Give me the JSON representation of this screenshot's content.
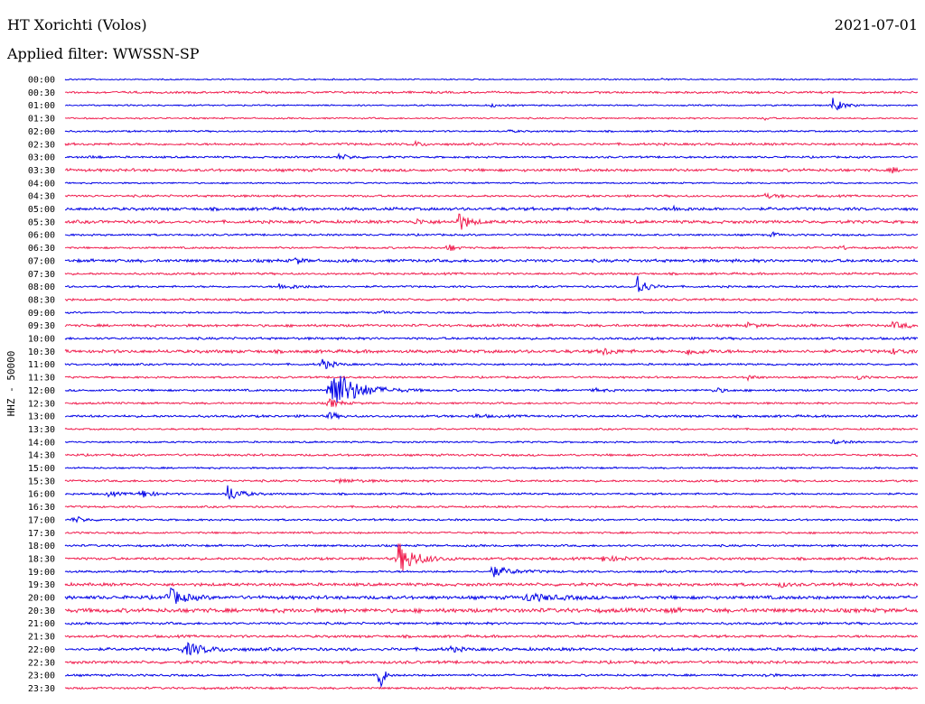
{
  "header": {
    "station": "HT Xorichti (Volos)",
    "date": "2021-07-01",
    "filter": "Applied filter: WWSSN-SP"
  },
  "chart_data": {
    "type": "line",
    "ylabel": "HHZ - 50000",
    "colors": {
      "even": "#0000e6",
      "odd": "#f01e4f"
    },
    "rows": [
      {
        "label": "00:00",
        "noise": 0.6,
        "events": [
          [
            0.7,
            1.0,
            6
          ]
        ]
      },
      {
        "label": "00:30",
        "noise": 1.0,
        "events": []
      },
      {
        "label": "01:00",
        "noise": 0.7,
        "events": [
          [
            0.5,
            1.5,
            12
          ],
          [
            0.9,
            8.0,
            10
          ]
        ]
      },
      {
        "label": "01:30",
        "noise": 0.7,
        "events": [
          [
            0.82,
            2.5,
            4
          ]
        ]
      },
      {
        "label": "02:00",
        "noise": 0.8,
        "events": [
          [
            0.52,
            1.0,
            10
          ]
        ]
      },
      {
        "label": "02:30",
        "noise": 1.1,
        "events": [
          [
            0.41,
            3.0,
            8
          ]
        ]
      },
      {
        "label": "03:00",
        "noise": 0.9,
        "events": [
          [
            0.03,
            2.0,
            8
          ],
          [
            0.32,
            3.0,
            14
          ]
        ]
      },
      {
        "label": "03:30",
        "noise": 1.3,
        "events": [
          [
            0.97,
            3.0,
            4
          ]
        ]
      },
      {
        "label": "04:00",
        "noise": 0.7,
        "events": []
      },
      {
        "label": "04:30",
        "noise": 1.0,
        "events": [
          [
            0.82,
            2.0,
            16
          ]
        ]
      },
      {
        "label": "05:00",
        "noise": 1.4,
        "events": [
          [
            0.71,
            2.5,
            12
          ]
        ]
      },
      {
        "label": "05:30",
        "noise": 1.4,
        "events": [
          [
            0.46,
            12.0,
            10
          ],
          [
            0.41,
            3.0,
            12
          ]
        ]
      },
      {
        "label": "06:00",
        "noise": 0.9,
        "events": [
          [
            0.83,
            3.5,
            4
          ]
        ]
      },
      {
        "label": "06:30",
        "noise": 0.9,
        "events": [
          [
            0.45,
            5.0,
            6
          ],
          [
            0.91,
            4.0,
            4
          ]
        ]
      },
      {
        "label": "07:00",
        "noise": 1.4,
        "events": [
          [
            0.27,
            4.0,
            6
          ]
        ]
      },
      {
        "label": "07:30",
        "noise": 1.0,
        "events": []
      },
      {
        "label": "08:00",
        "noise": 0.9,
        "events": [
          [
            0.67,
            16.0,
            8
          ],
          [
            0.25,
            3.0,
            20
          ]
        ]
      },
      {
        "label": "08:30",
        "noise": 1.0,
        "events": []
      },
      {
        "label": "09:00",
        "noise": 0.8,
        "events": [
          [
            0.37,
            1.5,
            10
          ]
        ]
      },
      {
        "label": "09:30",
        "noise": 1.2,
        "events": [
          [
            0.8,
            2.5,
            10
          ],
          [
            0.97,
            3.0,
            20
          ]
        ]
      },
      {
        "label": "10:00",
        "noise": 1.1,
        "events": []
      },
      {
        "label": "10:30",
        "noise": 1.5,
        "events": [
          [
            0.63,
            4.0,
            10
          ],
          [
            0.73,
            4.0,
            14
          ],
          [
            0.97,
            3.0,
            10
          ]
        ]
      },
      {
        "label": "11:00",
        "noise": 0.9,
        "events": [
          [
            0.3,
            7.0,
            10
          ],
          [
            0.05,
            2.0,
            4
          ]
        ]
      },
      {
        "label": "11:30",
        "noise": 0.9,
        "events": [
          [
            0.8,
            4.0,
            6
          ],
          [
            0.93,
            3.0,
            6
          ]
        ]
      },
      {
        "label": "12:00",
        "noise": 1.0,
        "events": [
          [
            0.31,
            28.0,
            24
          ],
          [
            0.76,
            4.0,
            8
          ],
          [
            0.62,
            2.0,
            10
          ]
        ]
      },
      {
        "label": "12:30",
        "noise": 0.9,
        "events": [
          [
            0.31,
            5.0,
            10
          ]
        ]
      },
      {
        "label": "13:00",
        "noise": 1.1,
        "events": [
          [
            0.31,
            6.0,
            6
          ],
          [
            0.48,
            2.0,
            10
          ]
        ]
      },
      {
        "label": "13:30",
        "noise": 0.8,
        "events": []
      },
      {
        "label": "14:00",
        "noise": 0.8,
        "events": [
          [
            0.9,
            2.0,
            14
          ]
        ]
      },
      {
        "label": "14:30",
        "noise": 1.0,
        "events": []
      },
      {
        "label": "15:00",
        "noise": 0.8,
        "events": []
      },
      {
        "label": "15:30",
        "noise": 1.0,
        "events": [
          [
            0.32,
            2.0,
            20
          ]
        ]
      },
      {
        "label": "16:00",
        "noise": 0.9,
        "events": [
          [
            0.05,
            3.0,
            10
          ],
          [
            0.09,
            5.0,
            10
          ],
          [
            0.19,
            10.0,
            12
          ]
        ]
      },
      {
        "label": "16:30",
        "noise": 0.9,
        "events": []
      },
      {
        "label": "17:00",
        "noise": 0.9,
        "events": [
          [
            0.01,
            4.0,
            10
          ]
        ]
      },
      {
        "label": "17:30",
        "noise": 0.9,
        "events": []
      },
      {
        "label": "18:00",
        "noise": 1.0,
        "events": []
      },
      {
        "label": "18:30",
        "noise": 1.2,
        "events": [
          [
            0.39,
            18.0,
            18
          ],
          [
            0.63,
            3.0,
            20
          ]
        ]
      },
      {
        "label": "19:00",
        "noise": 1.0,
        "events": [
          [
            0.5,
            6.0,
            20
          ]
        ]
      },
      {
        "label": "19:30",
        "noise": 1.4,
        "events": [
          [
            0.84,
            2.5,
            6
          ]
        ]
      },
      {
        "label": "20:00",
        "noise": 1.6,
        "events": [
          [
            0.12,
            12.0,
            14
          ],
          [
            0.54,
            4.0,
            30
          ]
        ]
      },
      {
        "label": "20:30",
        "noise": 1.9,
        "events": [
          [
            0.71,
            2.5,
            6
          ]
        ]
      },
      {
        "label": "21:00",
        "noise": 1.1,
        "events": []
      },
      {
        "label": "21:30",
        "noise": 1.2,
        "events": []
      },
      {
        "label": "22:00",
        "noise": 1.4,
        "events": [
          [
            0.14,
            7.0,
            22
          ],
          [
            0.45,
            3.0,
            10
          ]
        ]
      },
      {
        "label": "22:30",
        "noise": 1.3,
        "events": []
      },
      {
        "label": "23:00",
        "noise": 1.0,
        "events": [
          [
            0.37,
            24.0,
            3
          ],
          [
            0.82,
            3.0,
            6
          ]
        ]
      },
      {
        "label": "23:30",
        "noise": 1.0,
        "events": []
      }
    ]
  }
}
